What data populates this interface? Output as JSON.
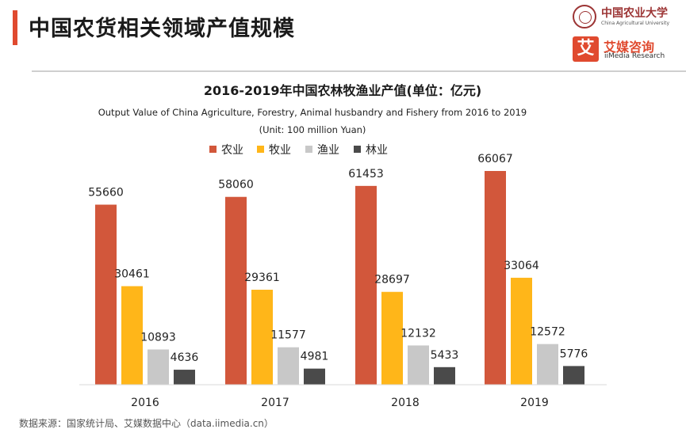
{
  "page": {
    "title": "中国农货相关领域产值规模",
    "accent_color": "#e04a2f",
    "source": "数据来源：国家统计局、艾媒数据中心（data.iimedia.cn）"
  },
  "logos": {
    "cau": {
      "name_cn": "中国农业大学",
      "name_en": "China Agricultural University",
      "color": "#9c3434"
    },
    "iimedia": {
      "badge": "艾",
      "name_cn": "艾媒咨询",
      "name_en": "iiMedia Research",
      "color": "#e04a2f"
    }
  },
  "chart_data": {
    "type": "bar",
    "title": "2016-2019年中国农林牧渔业产值(单位：亿元)",
    "subtitle": "Output Value of China Agriculture, Forestry, Animal husbandry and Fishery from 2016 to 2019",
    "unit": "(Unit: 100 million Yuan)",
    "categories": [
      "2016",
      "2017",
      "2018",
      "2019"
    ],
    "series": [
      {
        "name": "农业",
        "color": "#d2573b",
        "values": [
          55660,
          58060,
          61453,
          66067
        ]
      },
      {
        "name": "牧业",
        "color": "#ffb619",
        "values": [
          30461,
          29361,
          28697,
          33064
        ]
      },
      {
        "name": "渔业",
        "color": "#c8c8c8",
        "values": [
          10893,
          11577,
          12132,
          12572
        ]
      },
      {
        "name": "林业",
        "color": "#4a4a4a",
        "values": [
          4636,
          4981,
          5433,
          5776
        ]
      }
    ],
    "ylim": [
      0,
      70000
    ],
    "grid": false,
    "legend": "top"
  }
}
